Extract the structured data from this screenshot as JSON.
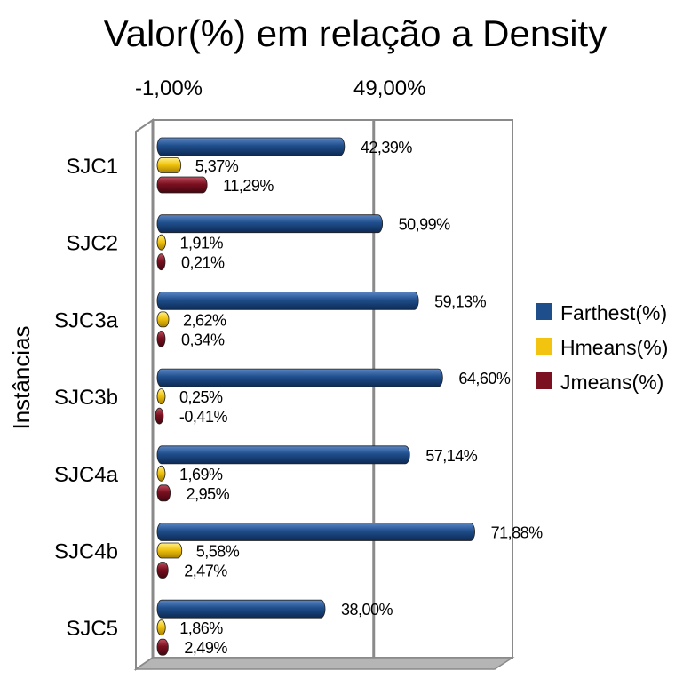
{
  "chart_data": {
    "type": "bar",
    "orientation": "horizontal",
    "title": "Valor(%) em relação a Density",
    "xlabel": "",
    "ylabel": "Instâncias",
    "x_tick_labels": [
      "-1,00%",
      "49,00%"
    ],
    "xlim": [
      -1,
      99
    ],
    "grid": true,
    "legend_position": "right",
    "categories": [
      "SJC1",
      "SJC2",
      "SJC3a",
      "SJC3b",
      "SJC4a",
      "SJC4b",
      "SJC5"
    ],
    "series": [
      {
        "name": "Farthest(%)",
        "color": "#1f4e8c",
        "values": [
          42.39,
          50.99,
          59.13,
          64.6,
          57.14,
          71.88,
          38.0
        ],
        "labels": [
          "42,39%",
          "50,99%",
          "59,13%",
          "64,60%",
          "57,14%",
          "71,88%",
          "38,00%"
        ]
      },
      {
        "name": "Hmeans(%)",
        "color": "#f2c40f",
        "values": [
          5.37,
          1.91,
          2.62,
          0.25,
          1.69,
          5.58,
          1.86
        ],
        "labels": [
          "5,37%",
          "1,91%",
          "2,62%",
          "0,25%",
          "1,69%",
          "5,58%",
          "1,86%"
        ]
      },
      {
        "name": "Jmeans(%)",
        "color": "#7a1020",
        "values": [
          11.29,
          0.21,
          0.34,
          -0.41,
          2.95,
          2.47,
          2.49
        ],
        "labels": [
          "11,29%",
          "0,21%",
          "0,34%",
          "-0,41%",
          "2,95%",
          "2,47%",
          "2,49%"
        ]
      }
    ]
  }
}
